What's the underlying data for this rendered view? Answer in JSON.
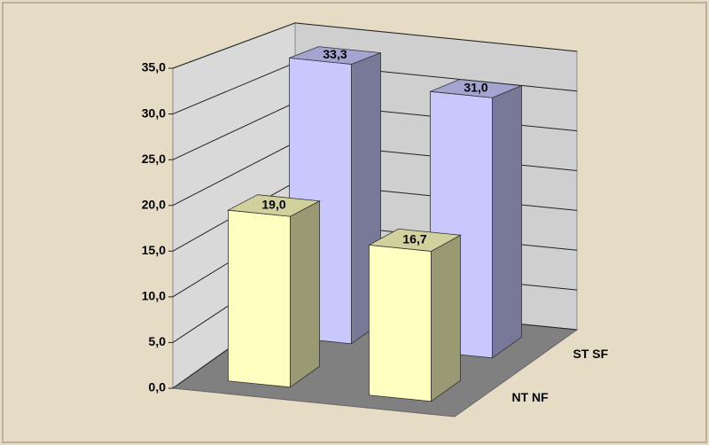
{
  "chart_data": {
    "type": "bar3d",
    "categories": [
      null,
      null
    ],
    "series": [
      {
        "name": "NT NF",
        "color": "#ffffc0",
        "values": [
          19.0,
          16.7
        ],
        "value_labels": [
          "19,0",
          "16,7"
        ]
      },
      {
        "name": "ST SF",
        "color": "#c8c8ff",
        "values": [
          33.3,
          31.0
        ],
        "value_labels": [
          "33,3",
          "31,0"
        ]
      }
    ],
    "ylim": [
      0,
      35
    ],
    "yticks": [
      {
        "value": 0,
        "label": "0,0"
      },
      {
        "value": 5,
        "label": "5,0"
      },
      {
        "value": 10,
        "label": "10,0"
      },
      {
        "value": 15,
        "label": "15,0"
      },
      {
        "value": 20,
        "label": "20,0"
      },
      {
        "value": 25,
        "label": "25,0"
      },
      {
        "value": 30,
        "label": "30,0"
      },
      {
        "value": 35,
        "label": "35,0"
      }
    ],
    "grid": true
  }
}
